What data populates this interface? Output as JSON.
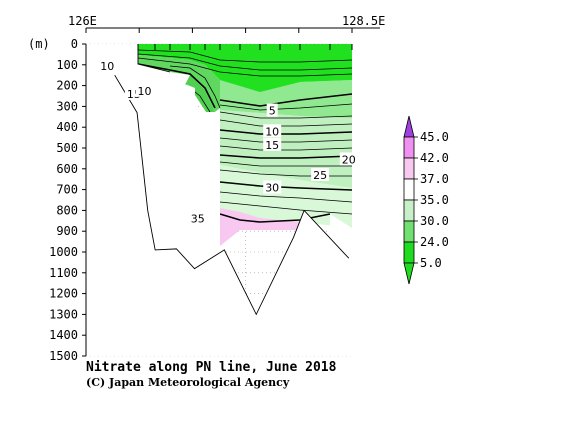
{
  "chart_data": {
    "type": "heatmap",
    "title": "Nitrate along PN line, June 2018",
    "credit": "(C) Japan Meteorological Agency",
    "ylabel": "(m)",
    "x_ticks": [
      "126E",
      "128.5E"
    ],
    "y_ticks": [
      0,
      100,
      200,
      300,
      400,
      500,
      600,
      700,
      800,
      900,
      1000,
      1100,
      1200,
      1300,
      1400,
      1500
    ],
    "ylim": [
      1500,
      0
    ],
    "grid": true,
    "contour_labels": [
      {
        "value": "10",
        "lon": 126.2,
        "depth": 105
      },
      {
        "value": "15",
        "lon": 126.45,
        "depth": 240
      },
      {
        "value": "10",
        "lon": 126.55,
        "depth": 225
      },
      {
        "value": "5",
        "lon": 127.75,
        "depth": 320
      },
      {
        "value": "10",
        "lon": 127.75,
        "depth": 420
      },
      {
        "value": "15",
        "lon": 127.75,
        "depth": 485
      },
      {
        "value": "20",
        "lon": 128.47,
        "depth": 555
      },
      {
        "value": "25",
        "lon": 128.2,
        "depth": 630
      },
      {
        "value": "30",
        "lon": 127.75,
        "depth": 690
      },
      {
        "value": "35",
        "lon": 127.05,
        "depth": 840
      }
    ],
    "colorbar": {
      "labels": [
        "45.0",
        "42.0",
        "37.0",
        "35.0",
        "30.0",
        "24.0",
        "5.0"
      ],
      "colors": [
        "#a040e0",
        "#f090f0",
        "#f8c8f0",
        "#ffffff",
        "#c8f0c8",
        "#70e070",
        "#20dc20"
      ]
    },
    "bottom_profile": [
      {
        "lon": 126.27,
        "depth": 150
      },
      {
        "lon": 126.48,
        "depth": 330
      },
      {
        "lon": 126.58,
        "depth": 800
      },
      {
        "lon": 126.65,
        "depth": 990
      },
      {
        "lon": 126.85,
        "depth": 985
      },
      {
        "lon": 127.02,
        "depth": 1080
      },
      {
        "lon": 127.3,
        "depth": 990
      },
      {
        "lon": 127.6,
        "depth": 1300
      },
      {
        "lon": 127.95,
        "depth": 930
      },
      {
        "lon": 128.05,
        "depth": 800
      },
      {
        "lon": 128.47,
        "depth": 1030
      }
    ]
  }
}
